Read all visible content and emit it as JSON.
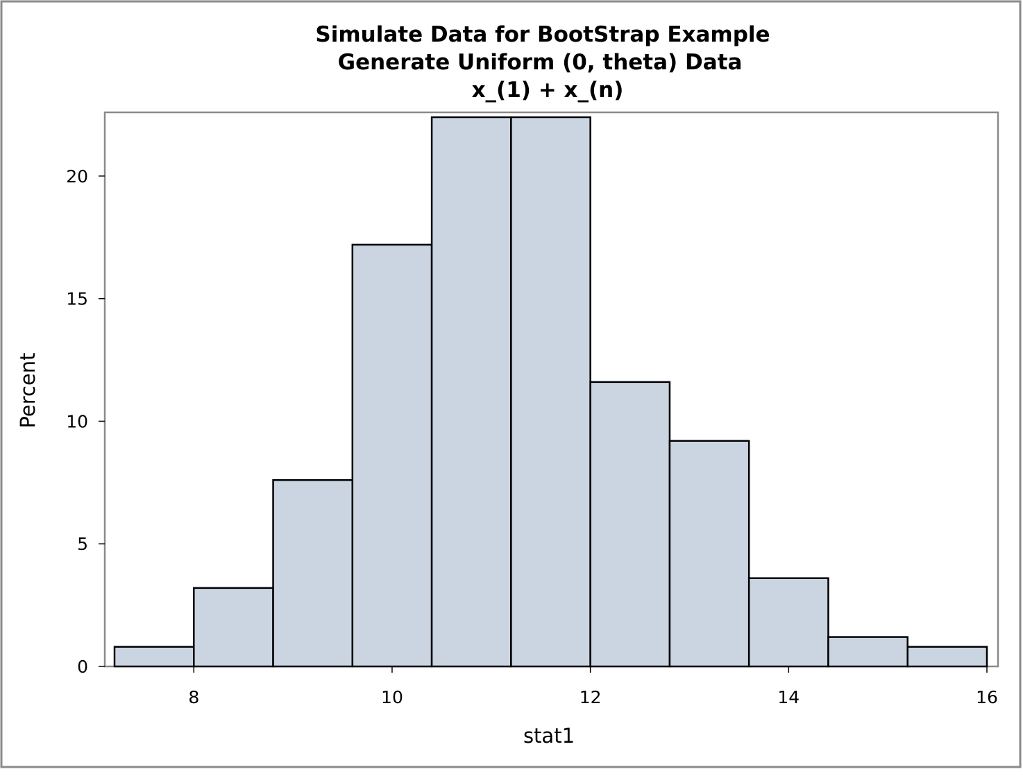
{
  "chart_data": {
    "type": "bar",
    "subtype": "histogram",
    "title": "Simulate Data for BootStrap Example",
    "subtitles": [
      "Generate Uniform (0, theta) Data",
      "x_(1) + x_(n)"
    ],
    "xlabel": "stat1",
    "ylabel": "Percent",
    "xlim": [
      7.2,
      16.0
    ],
    "ylim": [
      0,
      22.4
    ],
    "xticks": [
      8,
      10,
      12,
      14,
      16
    ],
    "yticks": [
      0,
      5,
      10,
      15,
      20
    ],
    "bin_width": 0.8,
    "bins": [
      {
        "start": 7.2,
        "end": 8.0,
        "value": 0.8
      },
      {
        "start": 8.0,
        "end": 8.8,
        "value": 3.2
      },
      {
        "start": 8.8,
        "end": 9.6,
        "value": 7.6
      },
      {
        "start": 9.6,
        "end": 10.4,
        "value": 17.2
      },
      {
        "start": 10.4,
        "end": 11.2,
        "value": 22.4
      },
      {
        "start": 11.2,
        "end": 12.0,
        "value": 22.4
      },
      {
        "start": 12.0,
        "end": 12.8,
        "value": 11.6
      },
      {
        "start": 12.8,
        "end": 13.6,
        "value": 9.2
      },
      {
        "start": 13.6,
        "end": 14.4,
        "value": 3.6
      },
      {
        "start": 14.4,
        "end": 15.2,
        "value": 1.2
      },
      {
        "start": 15.2,
        "end": 16.0,
        "value": 0.8
      }
    ],
    "grid": false,
    "colors": {
      "bar_fill": "#cbd5e2",
      "bar_stroke": "#000000",
      "frame": "#8a8a8a"
    }
  }
}
